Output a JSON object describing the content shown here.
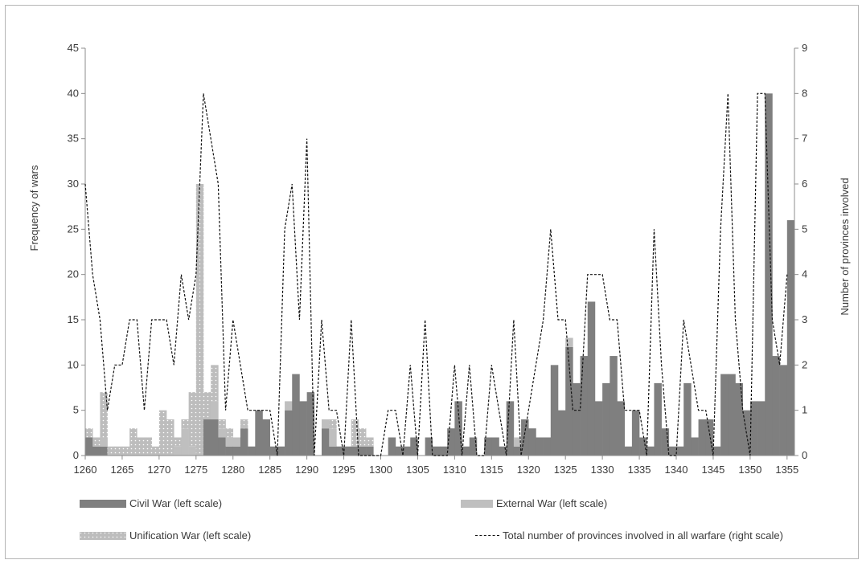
{
  "chart_data": {
    "type": "bar",
    "stacked": true,
    "title": "",
    "xlabel": "",
    "ylabel": "Frequency of wars",
    "y2label": "Number of provinces involved",
    "x": [
      1260,
      1261,
      1262,
      1263,
      1264,
      1265,
      1266,
      1267,
      1268,
      1269,
      1270,
      1271,
      1272,
      1273,
      1274,
      1275,
      1276,
      1277,
      1278,
      1279,
      1280,
      1281,
      1282,
      1283,
      1284,
      1285,
      1286,
      1287,
      1288,
      1289,
      1290,
      1291,
      1292,
      1293,
      1294,
      1295,
      1296,
      1297,
      1298,
      1299,
      1300,
      1301,
      1302,
      1303,
      1304,
      1305,
      1306,
      1307,
      1308,
      1309,
      1310,
      1311,
      1312,
      1313,
      1314,
      1315,
      1316,
      1317,
      1318,
      1319,
      1320,
      1321,
      1322,
      1323,
      1324,
      1325,
      1326,
      1327,
      1328,
      1329,
      1330,
      1331,
      1332,
      1333,
      1334,
      1335,
      1336,
      1337,
      1338,
      1339,
      1340,
      1341,
      1342,
      1343,
      1344,
      1345,
      1346,
      1347,
      1348,
      1349,
      1350,
      1351,
      1352,
      1353,
      1354,
      1355
    ],
    "xticks": [
      1260,
      1265,
      1270,
      1275,
      1280,
      1285,
      1290,
      1295,
      1300,
      1305,
      1310,
      1315,
      1320,
      1325,
      1330,
      1335,
      1340,
      1345,
      1350,
      1355
    ],
    "ylim": [
      0,
      45
    ],
    "yticks": [
      0,
      5,
      10,
      15,
      20,
      25,
      30,
      35,
      40,
      45
    ],
    "y2lim": [
      0,
      9
    ],
    "y2ticks": [
      0,
      1,
      2,
      3,
      4,
      5,
      6,
      7,
      8,
      9
    ],
    "grid": false,
    "series": [
      {
        "name": "Civil War (left scale)",
        "color": "#7f7f7f",
        "pattern": "solid",
        "values": [
          2,
          1,
          1,
          0,
          0,
          0,
          0,
          0,
          0,
          0,
          0,
          0,
          0,
          0,
          0,
          0,
          4,
          4,
          2,
          1,
          1,
          3,
          1,
          5,
          4,
          1,
          1,
          5,
          9,
          6,
          7,
          0,
          3,
          1,
          1,
          1,
          1,
          1,
          1,
          0,
          0,
          2,
          1,
          1,
          2,
          0,
          2,
          1,
          1,
          3,
          6,
          1,
          2,
          0,
          2,
          2,
          1,
          6,
          1,
          4,
          3,
          2,
          2,
          10,
          5,
          12,
          8,
          11,
          17,
          6,
          8,
          11,
          6,
          1,
          5,
          2,
          1,
          8,
          3,
          1,
          1,
          8,
          2,
          4,
          4,
          1,
          9,
          9,
          8,
          5,
          6,
          6,
          40,
          11,
          10,
          26
        ]
      },
      {
        "name": "External War (left scale)",
        "color": "#bfbfbf",
        "pattern": "solid",
        "values": [
          0,
          0,
          1,
          0,
          0,
          0,
          0,
          0,
          0,
          0,
          0,
          0,
          1,
          3,
          1,
          0,
          0,
          2,
          1,
          1,
          1,
          0,
          0,
          0,
          0,
          0,
          0,
          1,
          0,
          0,
          0,
          0,
          1,
          2,
          0,
          0,
          0,
          0,
          0,
          0,
          0,
          0,
          0,
          0,
          0,
          0,
          0,
          0,
          0,
          0,
          0,
          0,
          0,
          0,
          0,
          0,
          0,
          0,
          1,
          0,
          0,
          0,
          0,
          0,
          0,
          1,
          0,
          0,
          0,
          0,
          0,
          0,
          0,
          0,
          0,
          0,
          0,
          0,
          0,
          0,
          0,
          0,
          0,
          0,
          0,
          0,
          0,
          0,
          0,
          0,
          0,
          0,
          0,
          0,
          0,
          0
        ]
      },
      {
        "name": "Unification War (left scale)",
        "color": "#bdbdbd",
        "pattern": "dots",
        "values": [
          1,
          1,
          5,
          1,
          1,
          1,
          3,
          2,
          2,
          1,
          5,
          4,
          1,
          1,
          6,
          30,
          3,
          4,
          1,
          1,
          0,
          1,
          0,
          0,
          0,
          0,
          0,
          0,
          0,
          0,
          0,
          0,
          0,
          1,
          0,
          0,
          3,
          2,
          1,
          0,
          0,
          0,
          0,
          0,
          0,
          0,
          0,
          0,
          0,
          0,
          0,
          0,
          0,
          0,
          0,
          0,
          0,
          0,
          0,
          0,
          0,
          0,
          0,
          0,
          0,
          0,
          0,
          0,
          0,
          0,
          0,
          0,
          0,
          0,
          0,
          0,
          0,
          0,
          0,
          0,
          0,
          0,
          0,
          0,
          0,
          0,
          0,
          0,
          0,
          0,
          0,
          0,
          0,
          0,
          0,
          0
        ]
      },
      {
        "name": "Total number of provinces involved in all warfare (right scale)",
        "color": "#000000",
        "pattern": "dashed-line",
        "axis": "right",
        "values": [
          6,
          4,
          3,
          1,
          2,
          2,
          3,
          3,
          1,
          3,
          3,
          3,
          2,
          4,
          3,
          4,
          8,
          7,
          6,
          1,
          3,
          2,
          1,
          1,
          1,
          1,
          0,
          5,
          6,
          3,
          7,
          0,
          3,
          1,
          1,
          0,
          3,
          0,
          0,
          0,
          0,
          1,
          1,
          0,
          2,
          0,
          3,
          0,
          0,
          0,
          2,
          0,
          2,
          0,
          0,
          2,
          1,
          0,
          3,
          0,
          1,
          2,
          3,
          5,
          3,
          3,
          1,
          1,
          4,
          4,
          4,
          3,
          3,
          1,
          1,
          1,
          0,
          5,
          2,
          0,
          0,
          3,
          2,
          1,
          1,
          0,
          5,
          8,
          3,
          1,
          0,
          8,
          8,
          3,
          2,
          4
        ]
      }
    ],
    "legend": {
      "placement": "bottom",
      "columns": 2
    }
  }
}
